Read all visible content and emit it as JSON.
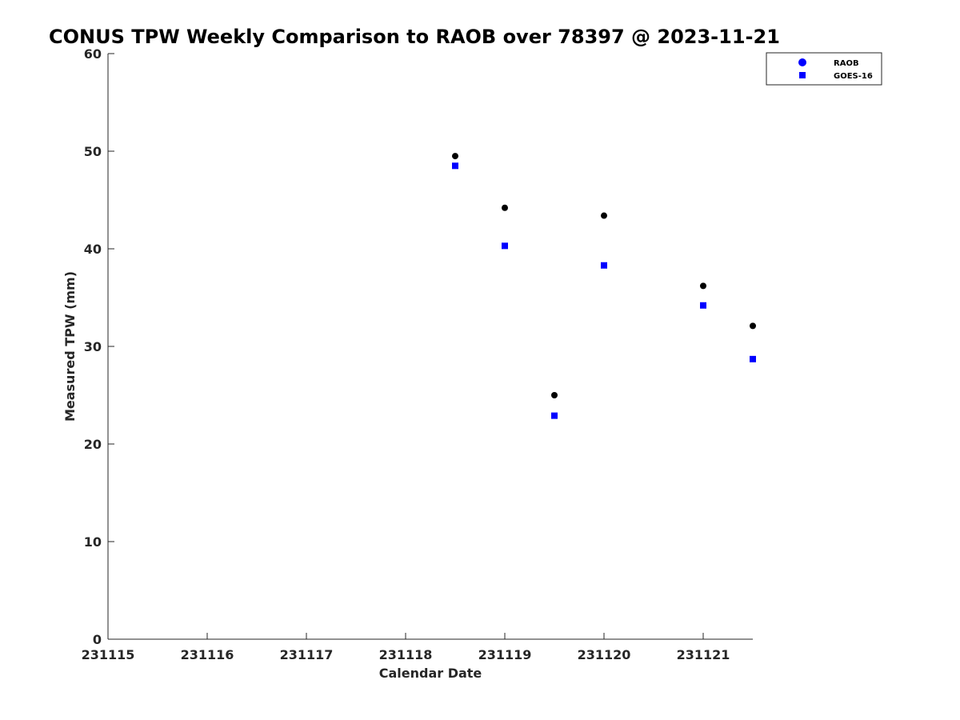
{
  "chart_data": {
    "type": "scatter",
    "title": "CONUS TPW Weekly Comparison to RAOB over 78397 @ 2023-11-21",
    "xlabel": "Calendar Date",
    "ylabel": "Measured TPW (mm)",
    "x_ticks": [
      "231115",
      "231116",
      "231117",
      "231118",
      "231119",
      "231120",
      "231121"
    ],
    "x_tick_positions": [
      0,
      1,
      2,
      3,
      4,
      5,
      6
    ],
    "xlim": [
      0,
      6.5
    ],
    "y_ticks": [
      0,
      10,
      20,
      30,
      40,
      50,
      60
    ],
    "ylim": [
      0,
      60
    ],
    "grid": false,
    "legend_position": "top-right",
    "series": [
      {
        "name": "RAOB",
        "marker": "circle",
        "color": "#000000",
        "legend_color": "#0000ff",
        "points": [
          {
            "x": 3.5,
            "y": 49.5
          },
          {
            "x": 4.0,
            "y": 44.2
          },
          {
            "x": 4.5,
            "y": 25.0
          },
          {
            "x": 5.0,
            "y": 43.4
          },
          {
            "x": 6.0,
            "y": 36.2
          },
          {
            "x": 6.5,
            "y": 32.1
          }
        ]
      },
      {
        "name": "GOES-16",
        "marker": "square",
        "color": "#0000ff",
        "legend_color": "#0000ff",
        "points": [
          {
            "x": 3.5,
            "y": 48.5
          },
          {
            "x": 4.0,
            "y": 40.3
          },
          {
            "x": 4.5,
            "y": 22.9
          },
          {
            "x": 5.0,
            "y": 38.3
          },
          {
            "x": 6.0,
            "y": 34.2
          },
          {
            "x": 6.5,
            "y": 28.7
          }
        ]
      }
    ]
  }
}
